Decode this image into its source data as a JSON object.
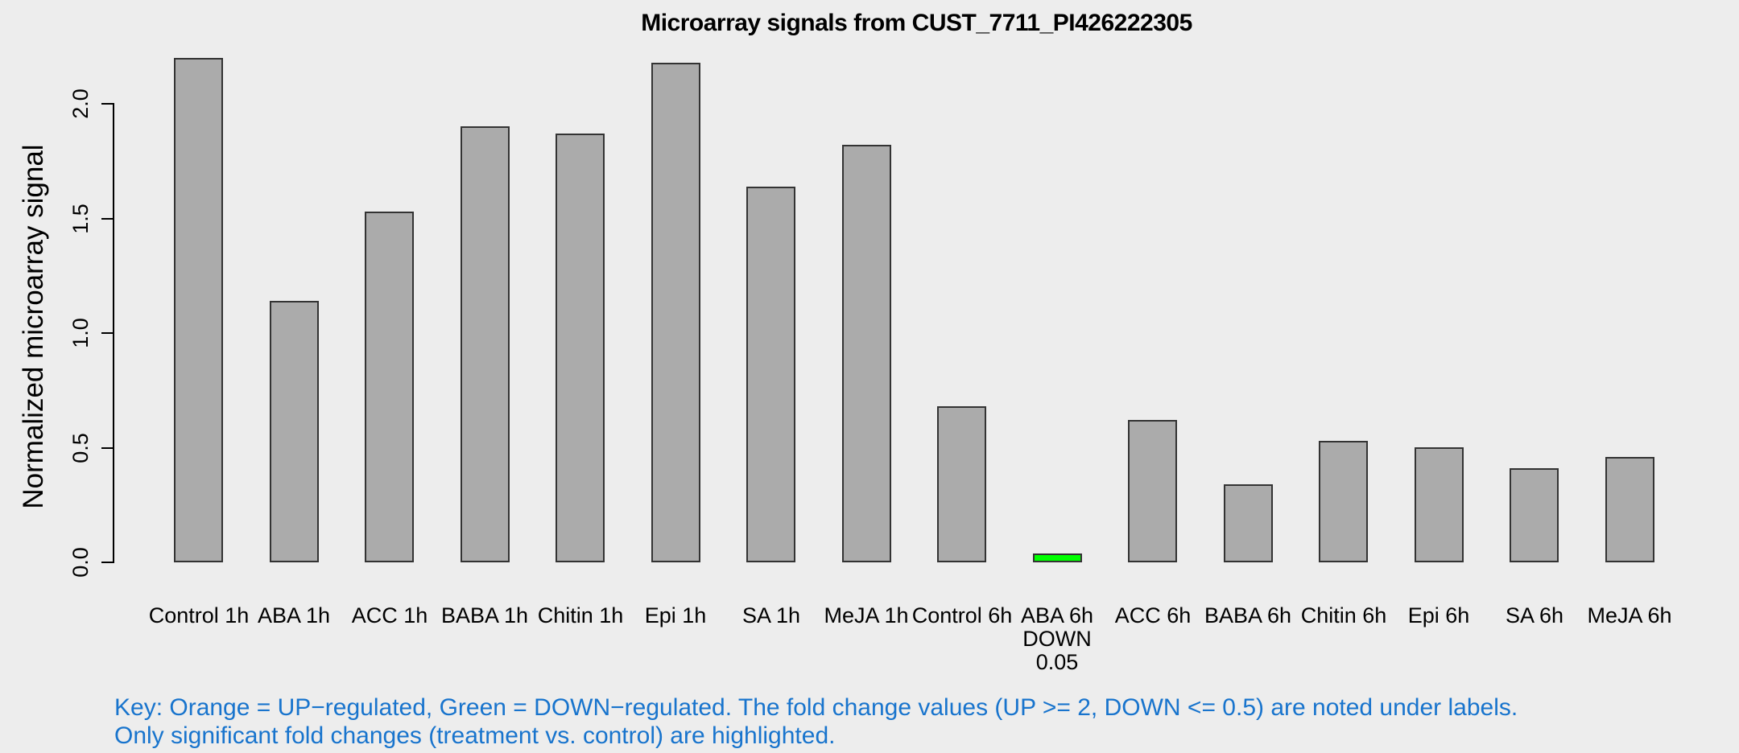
{
  "title": "Microarray signals from CUST_7711_PI426222305",
  "key": {
    "line1": "Key: Orange = UP−regulated, Green = DOWN−regulated. The fold change values (UP >= 2, DOWN <= 0.5) are noted under labels.",
    "line2": "Only significant fold changes (treatment vs. control) are highlighted.",
    "color": "#1874CD"
  },
  "colors": {
    "background": "#EDEDED",
    "bar_default": "#ABABAB",
    "bar_border": "#333333",
    "bar_down": "#00FF00",
    "bar_up": "#FFA500",
    "axis": "#000000",
    "text": "#000000"
  },
  "chart_data": {
    "type": "bar",
    "title": "Microarray signals from CUST_7711_PI426222305",
    "xlabel": "",
    "ylabel": "Normalized microarray signal",
    "ylim": [
      0,
      2.2
    ],
    "yticks": [
      0.0,
      0.5,
      1.0,
      1.5,
      2.0
    ],
    "ytick_labels": [
      "0.0",
      "0.5",
      "1.0",
      "1.5",
      "2.0"
    ],
    "grid": false,
    "legend_position": "none",
    "categories": [
      "Control 1h",
      "ABA 1h",
      "ACC 1h",
      "BABA 1h",
      "Chitin 1h",
      "Epi 1h",
      "SA 1h",
      "MeJA 1h",
      "Control 6h",
      "ABA 6h",
      "ACC 6h",
      "BABA 6h",
      "Chitin 6h",
      "Epi 6h",
      "SA 6h",
      "MeJA 6h"
    ],
    "values": [
      2.2,
      1.14,
      1.53,
      1.9,
      1.87,
      2.18,
      1.64,
      1.82,
      0.68,
      0.04,
      0.62,
      0.34,
      0.53,
      0.5,
      0.41,
      0.46
    ],
    "bars": [
      {
        "label": "Control 1h",
        "value": 2.2,
        "state": "none",
        "extra": []
      },
      {
        "label": "ABA 1h",
        "value": 1.14,
        "state": "none",
        "extra": []
      },
      {
        "label": "ACC 1h",
        "value": 1.53,
        "state": "none",
        "extra": []
      },
      {
        "label": "BABA 1h",
        "value": 1.9,
        "state": "none",
        "extra": []
      },
      {
        "label": "Chitin 1h",
        "value": 1.87,
        "state": "none",
        "extra": []
      },
      {
        "label": "Epi 1h",
        "value": 2.18,
        "state": "none",
        "extra": []
      },
      {
        "label": "SA 1h",
        "value": 1.64,
        "state": "none",
        "extra": []
      },
      {
        "label": "MeJA 1h",
        "value": 1.82,
        "state": "none",
        "extra": []
      },
      {
        "label": "Control 6h",
        "value": 0.68,
        "state": "none",
        "extra": []
      },
      {
        "label": "ABA 6h",
        "value": 0.04,
        "state": "down",
        "extra": [
          "DOWN",
          "0.05"
        ]
      },
      {
        "label": "ACC 6h",
        "value": 0.62,
        "state": "none",
        "extra": []
      },
      {
        "label": "BABA 6h",
        "value": 0.34,
        "state": "none",
        "extra": []
      },
      {
        "label": "Chitin 6h",
        "value": 0.53,
        "state": "none",
        "extra": []
      },
      {
        "label": "Epi 6h",
        "value": 0.5,
        "state": "none",
        "extra": []
      },
      {
        "label": "SA 6h",
        "value": 0.41,
        "state": "none",
        "extra": []
      },
      {
        "label": "MeJA 6h",
        "value": 0.46,
        "state": "none",
        "extra": []
      }
    ]
  }
}
